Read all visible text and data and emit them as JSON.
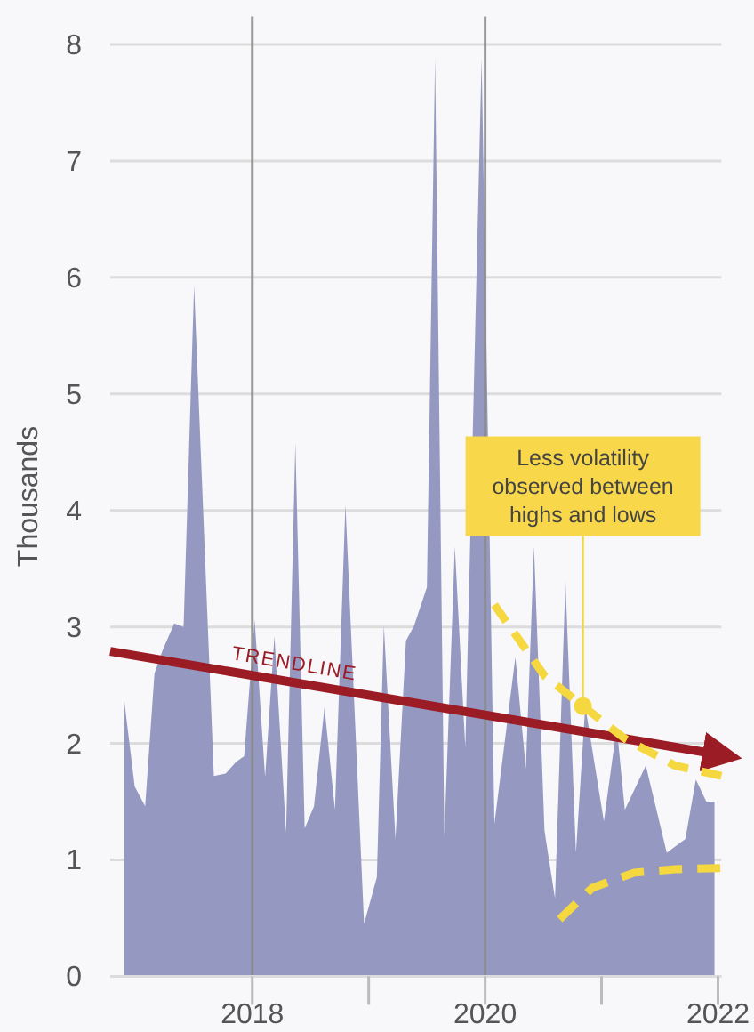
{
  "chart_data": {
    "type": "area",
    "ylabel": "Thousands",
    "xlim": [
      2016.78,
      2022.03
    ],
    "ylim": [
      0,
      8.24
    ],
    "xticks": [
      2018,
      {
        "value": 2019,
        "label": null
      },
      2020,
      {
        "value": 2021,
        "label": null
      },
      2022
    ],
    "yticks": [
      0,
      1,
      2,
      3,
      4,
      5,
      6,
      7,
      8
    ],
    "grid": "y",
    "legend": false,
    "marker": "none",
    "ref_lines": [
      {
        "axis": "x",
        "value": 2018,
        "color": "#8a8a8a"
      },
      {
        "axis": "x",
        "value": 2020,
        "color": "#8a8a8a"
      }
    ],
    "series": [
      {
        "color": "#9599c1",
        "x": [
          2016.9,
          2016.99,
          2017.08,
          2017.16,
          2017.23,
          2017.33,
          2017.41,
          2017.5,
          2017.67,
          2017.77,
          2017.86,
          2017.93,
          2018.02,
          2018.11,
          2018.19,
          2018.29,
          2018.37,
          2018.45,
          2018.53,
          2018.62,
          2018.71,
          2018.8,
          2018.96,
          2019.07,
          2019.13,
          2019.23,
          2019.32,
          2019.39,
          2019.5,
          2019.57,
          2019.65,
          2019.74,
          2019.83,
          2019.97,
          2020.08,
          2020.26,
          2020.35,
          2020.42,
          2020.51,
          2020.6,
          2020.69,
          2020.78,
          2020.86,
          2021.02,
          2021.13,
          2021.2,
          2021.38,
          2021.56,
          2021.72,
          2021.81,
          2021.9,
          2021.97
        ],
        "values": [
          2.37,
          1.63,
          1.46,
          2.6,
          2.8,
          3.03,
          3.0,
          5.93,
          1.72,
          1.74,
          1.84,
          1.89,
          3.06,
          1.71,
          2.92,
          1.23,
          4.58,
          1.27,
          1.46,
          2.31,
          1.43,
          4.05,
          0.45,
          0.85,
          3.01,
          1.18,
          2.88,
          3.01,
          3.34,
          7.88,
          1.2,
          3.69,
          1.96,
          7.88,
          1.31,
          2.74,
          1.78,
          3.69,
          1.25,
          0.67,
          3.39,
          1.06,
          2.32,
          1.33,
          2.14,
          1.43,
          1.81,
          1.06,
          1.18,
          1.69,
          1.5,
          1.5
        ]
      },
      {
        "type": "line",
        "name": "TRENDLINE",
        "color": "#9b1c24",
        "line_style": "solid",
        "x": [
          2016.78,
          2021.97
        ],
        "values": [
          2.79,
          1.91
        ]
      },
      {
        "type": "line",
        "color": "#f5d840",
        "line_style": "dashed",
        "x": [
          2020.08,
          2020.51,
          2020.84,
          2021.2,
          2021.63,
          2022.03
        ],
        "values": [
          3.19,
          2.58,
          2.32,
          2.04,
          1.81,
          1.72
        ]
      },
      {
        "type": "line",
        "color": "#f5d840",
        "line_style": "dashed",
        "x": [
          2020.64,
          2020.92,
          2021.28,
          2021.63,
          2022.02
        ],
        "values": [
          0.49,
          0.76,
          0.89,
          0.92,
          0.93
        ]
      }
    ],
    "annotations": [
      {
        "text": "Less volatility observed between highs and lows",
        "x": 2020.84,
        "y": 2.32
      }
    ]
  }
}
